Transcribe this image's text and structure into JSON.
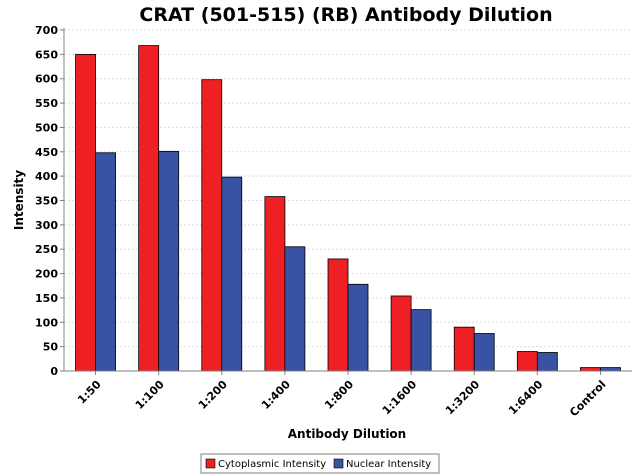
{
  "chart_data": {
    "type": "bar",
    "title": "CRAT (501-515) (RB) Antibody Dilution",
    "xlabel": "Antibody Dilution",
    "ylabel": "Intensity",
    "ylim": [
      0,
      700
    ],
    "yticks": [
      0,
      50,
      100,
      150,
      200,
      250,
      300,
      350,
      400,
      450,
      500,
      550,
      600,
      650,
      700
    ],
    "categories": [
      "1:50",
      "1:100",
      "1:200",
      "1:400",
      "1:800",
      "1:1600",
      "1:3200",
      "1:6400",
      "Control"
    ],
    "series": [
      {
        "name": "Cytoplasmic Intensity",
        "color": "#ee2024",
        "values": [
          650,
          668,
          598,
          358,
          230,
          154,
          90,
          40,
          7
        ]
      },
      {
        "name": "Nuclear Intensity",
        "color": "#3953a4",
        "values": [
          448,
          451,
          398,
          255,
          178,
          126,
          77,
          38,
          7
        ]
      }
    ],
    "grid": true,
    "legend_position": "bottom-center"
  }
}
